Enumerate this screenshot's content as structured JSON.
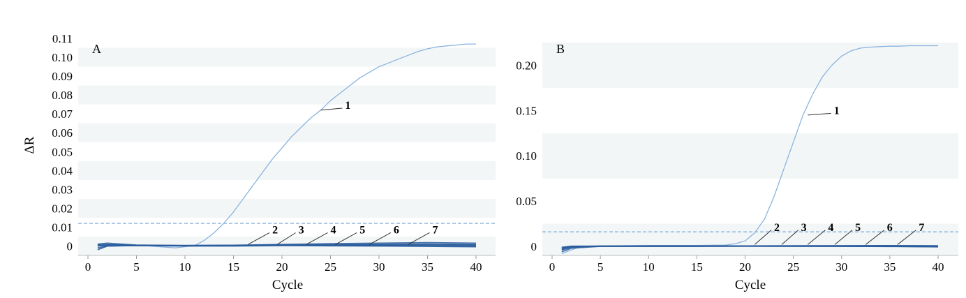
{
  "figure": {
    "ylabel": "ΔR",
    "panels": [
      "A",
      "B"
    ]
  },
  "chart_data": [
    {
      "type": "line",
      "panel_label": "A",
      "xlabel": "Cycle",
      "ylabel": "ΔR",
      "xlim": [
        0,
        40
      ],
      "ylim": [
        -0.005,
        0.11
      ],
      "x_ticks": [
        "0",
        "5",
        "10",
        "15",
        "20",
        "25",
        "30",
        "35",
        "40"
      ],
      "y_ticks": [
        "0",
        "0.01",
        "0.02",
        "0.03",
        "0.04",
        "0.05",
        "0.06",
        "0.07",
        "0.08",
        "0.09",
        "0.10",
        "0.11"
      ],
      "threshold": 0.012,
      "grid": "horizontal bands",
      "colors": {
        "curve": "#8ab4de",
        "negatives": "#2a5d9e",
        "threshold": "#8ab4de"
      },
      "series": [
        {
          "name": "1",
          "x": [
            1,
            5,
            9,
            11,
            12,
            13,
            14,
            15,
            16,
            17,
            18,
            19,
            20,
            21,
            22,
            23,
            24,
            25,
            26,
            27,
            28,
            29,
            30,
            31,
            32,
            33,
            34,
            35,
            36,
            37,
            38,
            39,
            40
          ],
          "y": [
            0.0005,
            0.0005,
            -0.001,
            0.0002,
            0.003,
            0.007,
            0.012,
            0.018,
            0.025,
            0.032,
            0.039,
            0.046,
            0.052,
            0.058,
            0.063,
            0.068,
            0.072,
            0.077,
            0.081,
            0.085,
            0.089,
            0.092,
            0.095,
            0.097,
            0.099,
            0.101,
            0.103,
            0.1045,
            0.1055,
            0.106,
            0.1065,
            0.107,
            0.107
          ]
        },
        {
          "name": "2",
          "x": [
            1,
            2,
            5,
            10,
            15,
            20,
            25,
            30,
            35,
            40
          ],
          "y": [
            0.001,
            0.0015,
            0.0005,
            0.0002,
            0.0003,
            0.0006,
            0.0004,
            0.0003,
            0.0002,
            0.0001
          ]
        },
        {
          "name": "3",
          "x": [
            1,
            2,
            5,
            10,
            15,
            20,
            25,
            30,
            35,
            40
          ],
          "y": [
            -0.002,
            0.0,
            0.0003,
            0.0001,
            0.0002,
            0.0004,
            0.0002,
            0.0001,
            0.0,
            -0.0001
          ]
        },
        {
          "name": "4",
          "x": [
            1,
            2,
            5,
            10,
            15,
            20,
            25,
            30,
            35,
            40
          ],
          "y": [
            0.0005,
            0.0008,
            0.0004,
            0.0003,
            0.0004,
            0.0008,
            0.0012,
            0.0015,
            0.0018,
            0.0015
          ]
        },
        {
          "name": "5",
          "x": [
            1,
            2,
            5,
            10,
            15,
            20,
            25,
            30,
            35,
            40
          ],
          "y": [
            -0.001,
            0.0,
            0.0002,
            0.0,
            0.0001,
            0.0003,
            0.0005,
            0.0006,
            0.0008,
            0.0006
          ]
        },
        {
          "name": "6",
          "x": [
            1,
            2,
            5,
            10,
            15,
            20,
            25,
            30,
            35,
            40
          ],
          "y": [
            0.0,
            0.0003,
            0.0002,
            0.0001,
            0.0,
            0.0002,
            0.0001,
            0.0,
            -0.0002,
            -0.0004
          ]
        },
        {
          "name": "7",
          "x": [
            1,
            2,
            5,
            10,
            15,
            20,
            25,
            30,
            35,
            40
          ],
          "y": [
            0.0003,
            0.0006,
            0.0003,
            0.0002,
            0.0003,
            0.0005,
            0.0007,
            0.0009,
            0.001,
            0.0008
          ]
        }
      ],
      "annotations": [
        {
          "text": "1",
          "point": [
            24,
            0.072
          ],
          "label_at": [
            26.5,
            0.0745
          ]
        },
        {
          "text": "2",
          "point": [
            16.5,
            0.0008
          ],
          "label_at": [
            19,
            0.0085
          ]
        },
        {
          "text": "3",
          "point": [
            19.5,
            0.0008
          ],
          "label_at": [
            21.7,
            0.0085
          ]
        },
        {
          "text": "4",
          "point": [
            22.5,
            0.0008
          ],
          "label_at": [
            25,
            0.0085
          ]
        },
        {
          "text": "5",
          "point": [
            25.5,
            0.0008
          ],
          "label_at": [
            28,
            0.0085
          ]
        },
        {
          "text": "6",
          "point": [
            29,
            0.0008
          ],
          "label_at": [
            31.5,
            0.0085
          ]
        },
        {
          "text": "7",
          "point": [
            33,
            0.0008
          ],
          "label_at": [
            35.5,
            0.0085
          ]
        }
      ]
    },
    {
      "type": "line",
      "panel_label": "B",
      "xlabel": "Cycle",
      "ylabel": "",
      "xlim": [
        0,
        40
      ],
      "ylim": [
        -0.01,
        0.235
      ],
      "x_ticks": [
        "0",
        "5",
        "10",
        "15",
        "20",
        "25",
        "30",
        "35",
        "40"
      ],
      "y_ticks": [
        "0",
        "0.05",
        "0.10",
        "0.15",
        "0.20"
      ],
      "threshold": 0.016,
      "grid": "horizontal bands",
      "colors": {
        "curve": "#8ab4de",
        "negatives": "#2a5d9e",
        "threshold": "#8ab4de"
      },
      "series": [
        {
          "name": "1",
          "x": [
            1,
            3,
            5,
            10,
            15,
            18,
            19,
            20,
            21,
            22,
            23,
            24,
            25,
            26,
            27,
            28,
            29,
            30,
            31,
            32,
            33,
            34,
            35,
            36,
            37,
            38,
            39,
            40
          ],
          "y": [
            -0.008,
            0.0,
            0.0005,
            0.001,
            0.001,
            0.0015,
            0.003,
            0.006,
            0.015,
            0.03,
            0.055,
            0.085,
            0.115,
            0.145,
            0.168,
            0.187,
            0.2,
            0.21,
            0.216,
            0.219,
            0.22,
            0.2205,
            0.221,
            0.221,
            0.2215,
            0.2215,
            0.2215,
            0.2215
          ]
        },
        {
          "name": "2",
          "x": [
            1,
            2,
            5,
            10,
            15,
            20,
            25,
            30,
            35,
            40
          ],
          "y": [
            -0.006,
            -0.002,
            0.0,
            0.0005,
            0.0005,
            0.0005,
            0.0003,
            0.0002,
            0.0,
            -0.0005
          ]
        },
        {
          "name": "3",
          "x": [
            1,
            2,
            5,
            10,
            15,
            20,
            25,
            30,
            35,
            40
          ],
          "y": [
            -0.004,
            -0.001,
            0.0003,
            0.0004,
            0.0003,
            0.0004,
            0.0005,
            0.0004,
            0.0003,
            0.0002
          ]
        },
        {
          "name": "4",
          "x": [
            1,
            2,
            5,
            10,
            15,
            20,
            25,
            30,
            35,
            40
          ],
          "y": [
            -0.002,
            0.0,
            0.0002,
            0.0002,
            0.0002,
            0.0003,
            0.0004,
            0.0005,
            0.0006,
            0.0005
          ]
        },
        {
          "name": "5",
          "x": [
            1,
            2,
            5,
            10,
            15,
            20,
            25,
            30,
            35,
            40
          ],
          "y": [
            -0.003,
            -0.0005,
            0.0001,
            0.0001,
            0.0001,
            0.0002,
            0.0002,
            0.0001,
            0.0,
            -0.0003
          ]
        },
        {
          "name": "6",
          "x": [
            1,
            2,
            5,
            10,
            15,
            20,
            25,
            30,
            35,
            40
          ],
          "y": [
            -0.001,
            0.0002,
            0.0003,
            0.0003,
            0.0004,
            0.0005,
            0.0007,
            0.0008,
            0.0009,
            0.0007
          ]
        },
        {
          "name": "7",
          "x": [
            1,
            2,
            5,
            10,
            15,
            20,
            25,
            30,
            35,
            40
          ],
          "y": [
            -0.002,
            0.0,
            0.0001,
            0.0002,
            0.0002,
            0.0003,
            0.0002,
            0.0001,
            -0.0001,
            -0.0004
          ]
        }
      ],
      "annotations": [
        {
          "text": "1",
          "point": [
            26.5,
            0.145
          ],
          "label_at": [
            29.2,
            0.15
          ]
        },
        {
          "text": "2",
          "point": [
            21,
            0.002
          ],
          "label_at": [
            23,
            0.021
          ]
        },
        {
          "text": "3",
          "point": [
            23.8,
            0.002
          ],
          "label_at": [
            25.8,
            0.021
          ]
        },
        {
          "text": "4",
          "point": [
            26.5,
            0.002
          ],
          "label_at": [
            28.6,
            0.021
          ]
        },
        {
          "text": "5",
          "point": [
            29.3,
            0.002
          ],
          "label_at": [
            31.4,
            0.021
          ]
        },
        {
          "text": "6",
          "point": [
            32.5,
            0.002
          ],
          "label_at": [
            34.7,
            0.021
          ]
        },
        {
          "text": "7",
          "point": [
            35.8,
            0.002
          ],
          "label_at": [
            38,
            0.021
          ]
        }
      ]
    }
  ]
}
